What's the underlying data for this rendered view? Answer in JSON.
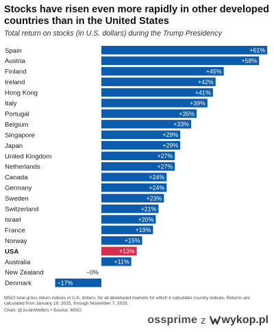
{
  "header": {
    "title": "Stocks have risen even more rapidly in other developed countries than in the United States",
    "subtitle": "Total return on stocks (in U.S. dollars) during the Trump Presidency"
  },
  "footer": {
    "note": "MSCI total gross return indices in U.S. dollars, for all developed markets for which it calculates country indices. Returns are calculated from January 19, 2025, through November 7, 2025.",
    "source": "Chart: @JustinWolfers • Source: MSCI"
  },
  "watermark": {
    "username": "ossprime",
    "separator": "z",
    "site": "wykop.pl",
    "icon": "wykop-logo-icon"
  },
  "colors": {
    "bar": "#0b5cad",
    "highlight": "#d62e4c",
    "label_in_bar": "#ffffff",
    "label_outside": "#222222"
  },
  "chart_data": {
    "type": "bar",
    "orientation": "horizontal",
    "categories": [
      "Spain",
      "Austria",
      "Finland",
      "Ireland",
      "Hong Kong",
      "Italy",
      "Portugal",
      "Belgium",
      "Singapore",
      "Japan",
      "United Kingdom",
      "Netherlands",
      "Canada",
      "Germany",
      "Sweden",
      "Switzerland",
      "Israel",
      "France",
      "Norway",
      "USA",
      "Australia",
      "New Zealand",
      "Denmark"
    ],
    "values": [
      61,
      58,
      45,
      42,
      41,
      39,
      35,
      33,
      29,
      29,
      27,
      27,
      24,
      24,
      23,
      21,
      20,
      19,
      15,
      13,
      11,
      0,
      -17
    ],
    "data_labels": [
      "+61%",
      "+58%",
      "+45%",
      "+42%",
      "+41%",
      "+39%",
      "+35%",
      "+33%",
      "+29%",
      "+29%",
      "+27%",
      "+27%",
      "+24%",
      "+24%",
      "+23%",
      "+21%",
      "+20%",
      "+19%",
      "+15%",
      "+13%",
      "+11%",
      "−0%",
      "−17%"
    ],
    "highlight": "USA",
    "unit": "%",
    "xlim": [
      -17,
      61
    ],
    "grid": false,
    "legend": "none"
  }
}
